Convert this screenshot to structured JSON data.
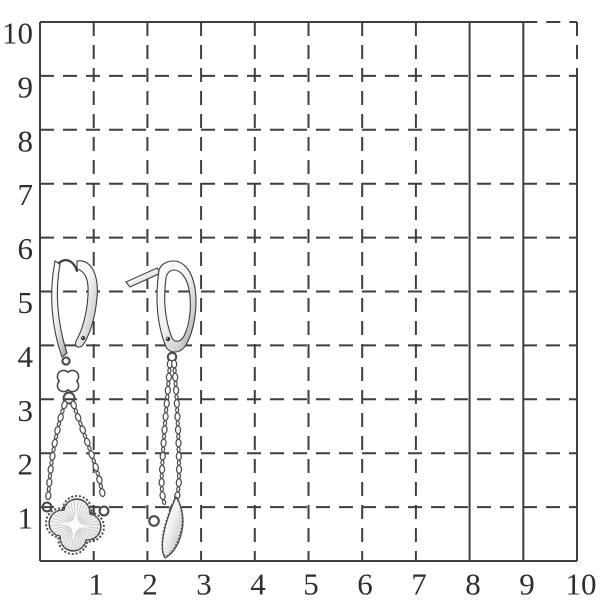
{
  "scene": {
    "description": "Pair of silver lever-back dangle earrings with cable-chain tassels and quatrefoil clover charms, photographed on a 10x10 dashed measurement grid",
    "left_item": "earring front view with clover charm hanging from two chain strands",
    "right_item": "earring profile view with chain strands and charm seen edge-on"
  },
  "grid": {
    "x_tick_labels": [
      "1",
      "2",
      "3",
      "4",
      "5",
      "6",
      "7",
      "8",
      "9",
      "10"
    ],
    "y_tick_labels": [
      "10",
      "9",
      "8",
      "7",
      "6",
      "5",
      "4",
      "3",
      "2",
      "1"
    ],
    "x_range": [
      0,
      10
    ],
    "y_range": [
      0,
      10
    ],
    "line_color": "#3f3f3f",
    "label_color": "#2e2e2e",
    "background": "#ffffff",
    "solid_vertical_lines": [
      8,
      9
    ],
    "line_style": "dashed interior, solid border"
  },
  "jewelry": {
    "metal_light": "#ffffff",
    "metal_mid": "#d9d9d9",
    "metal_dark": "#909090",
    "outline": "#3c3c3c"
  }
}
